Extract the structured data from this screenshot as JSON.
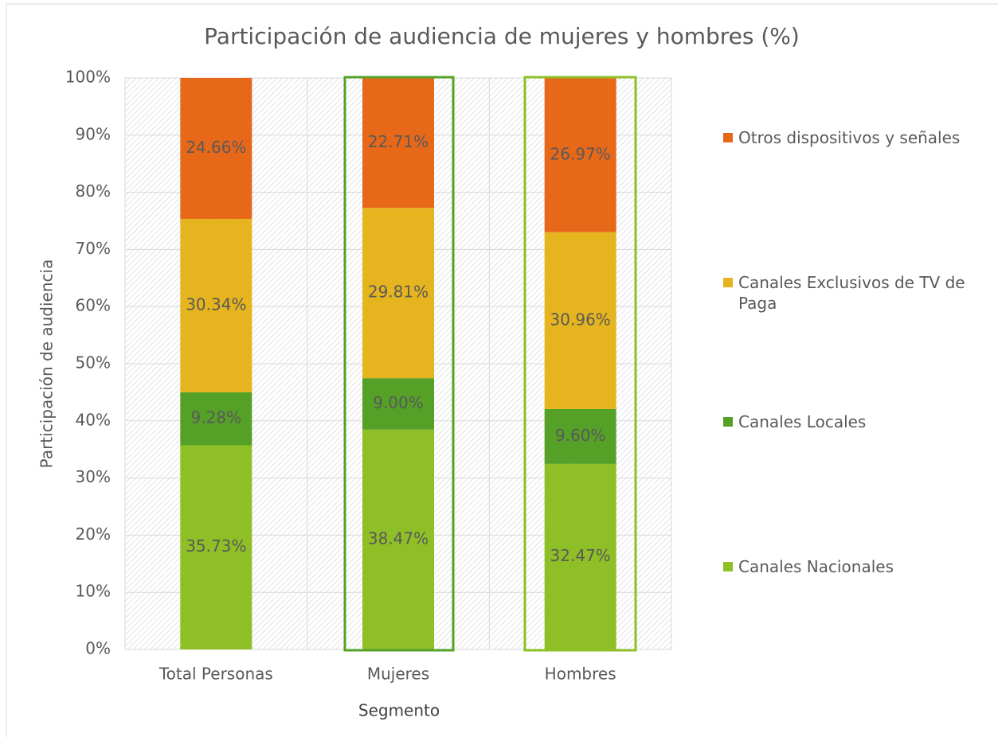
{
  "chart_data": {
    "type": "stacked_bar",
    "title": "Participación de audiencia de mujeres y hombres (%)",
    "x_label": "Segmento",
    "y_label": "Participación de audiencia",
    "categories": [
      "Total Personas",
      "Mujeres",
      "Hombres"
    ],
    "series": [
      {
        "name": "Canales Nacionales",
        "color": "#8fbf26",
        "values": [
          35.73,
          38.47,
          32.47
        ],
        "value_labels": [
          "35.73%",
          "38.47%",
          "32.47%"
        ]
      },
      {
        "name": "Canales Locales",
        "color": "#55a128",
        "values": [
          9.28,
          9.0,
          9.6
        ],
        "value_labels": [
          "9.28%",
          "9.00%",
          "9.60%"
        ]
      },
      {
        "name": "Canales Exclusivos de TV de Paga",
        "color": "#e6b41e",
        "values": [
          30.34,
          29.81,
          30.96
        ],
        "value_labels": [
          "30.34%",
          "29.81%",
          "30.96%"
        ]
      },
      {
        "name": "Otros dispositivos y señales",
        "color": "#e8681a",
        "values": [
          24.66,
          22.71,
          26.97
        ],
        "value_labels": [
          "24.66%",
          "22.71%",
          "26.97%"
        ]
      }
    ],
    "ylim": [
      0,
      100
    ],
    "yticks": [
      {
        "value": 0,
        "label": "0%"
      },
      {
        "value": 10,
        "label": "10%"
      },
      {
        "value": 20,
        "label": "20%"
      },
      {
        "value": 30,
        "label": "30%"
      },
      {
        "value": 40,
        "label": "40%"
      },
      {
        "value": 50,
        "label": "50%"
      },
      {
        "value": 60,
        "label": "60%"
      },
      {
        "value": 70,
        "label": "70%"
      },
      {
        "value": 80,
        "label": "80%"
      },
      {
        "value": 90,
        "label": "90%"
      },
      {
        "value": 100,
        "label": "100%"
      }
    ],
    "grid": true,
    "legend": "right"
  }
}
